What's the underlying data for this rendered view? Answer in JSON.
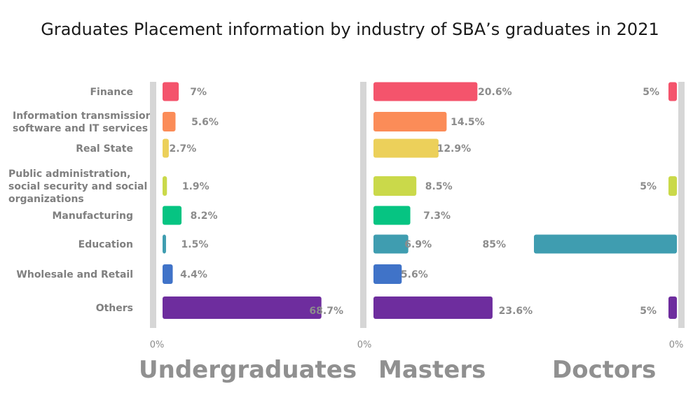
{
  "title": "Graduates Placement information by industry of SBA’s graduates in 2021",
  "chart_data": {
    "type": "bar",
    "orientation": "horizontal",
    "categories": [
      [
        "Finance"
      ],
      [
        "Information transmission,",
        "software and IT services"
      ],
      [
        "Real State"
      ],
      [
        "Public administration,",
        "social security and social",
        "organizations"
      ],
      [
        "Manufacturing"
      ],
      [
        "Education"
      ],
      [
        "Wholesale and Retail"
      ],
      [
        "Others"
      ]
    ],
    "colors": [
      "#f4546c",
      "#fb8c58",
      "#ecd05a",
      "#cad94a",
      "#06c482",
      "#3f9db0",
      "#4073c8",
      "#6e2d9e"
    ],
    "axis_zero_label": "0%",
    "panels": [
      {
        "name": "Undergraduates",
        "values": [
          7,
          5.6,
          2.7,
          1.9,
          8.2,
          1.5,
          4.4,
          68.7
        ],
        "labels": [
          "7%",
          "5.6%",
          "2.7%",
          "1.9%",
          "8.2%",
          "1.5%",
          "4.4%",
          "68.7%"
        ]
      },
      {
        "name": "Masters",
        "values": [
          20.6,
          14.5,
          12.9,
          8.5,
          7.3,
          6.9,
          5.6,
          23.6
        ],
        "labels": [
          "20.6%",
          "14.5%",
          "12.9%",
          "8.5%",
          "7.3%",
          "6.9%",
          "5.6%",
          "23.6%"
        ]
      },
      {
        "name": "Doctors",
        "values": [
          5,
          null,
          null,
          5,
          null,
          85,
          null,
          5
        ],
        "labels": [
          "5%",
          null,
          null,
          "5%",
          null,
          "85%",
          null,
          "5%"
        ]
      }
    ]
  }
}
